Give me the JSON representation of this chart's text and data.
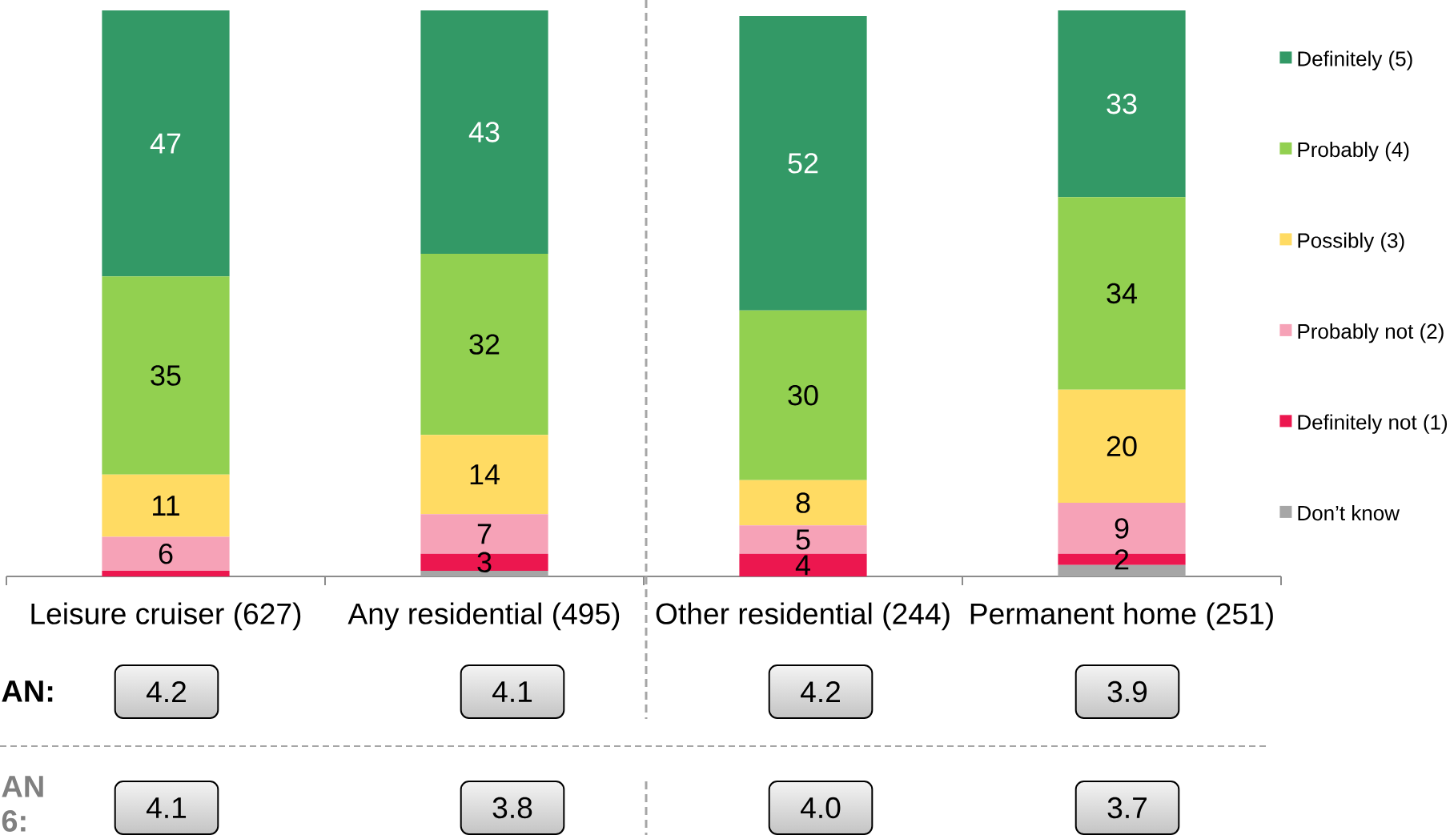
{
  "chart_data": {
    "type": "bar",
    "stacked": true,
    "categories": [
      "Leisure cruiser (627)",
      "Any residential (495)",
      "Other residential (244)",
      "Permanent home (251)"
    ],
    "series": [
      {
        "name": "Don’t know",
        "color": "#a6a6a6",
        "values": [
          0,
          1,
          0,
          2
        ]
      },
      {
        "name": "Definitely not (1)",
        "color": "#ec174f",
        "values": [
          1,
          3,
          4,
          2
        ],
        "value_labels": [
          null,
          "3",
          "4",
          "2"
        ]
      },
      {
        "name": "Probably not (2)",
        "color": "#f6a2b7",
        "values": [
          6,
          7,
          5,
          9
        ],
        "value_labels": [
          "6",
          "7",
          "5",
          "9"
        ]
      },
      {
        "name": "Possibly (3)",
        "color": "#ffdb63",
        "values": [
          11,
          14,
          8,
          20
        ],
        "value_labels": [
          "11",
          "14",
          "8",
          "20"
        ]
      },
      {
        "name": "Probably (4)",
        "color": "#92d050",
        "values": [
          35,
          32,
          30,
          34
        ],
        "value_labels": [
          "35",
          "32",
          "30",
          "34"
        ]
      },
      {
        "name": "Definitely (5)",
        "color": "#339966",
        "values": [
          47,
          43,
          52,
          33
        ],
        "value_labels": [
          "47",
          "43",
          "52",
          "33"
        ]
      }
    ],
    "ylim": [
      0,
      100
    ],
    "tick_labels": "x",
    "legend": "right",
    "annotations": [
      "AN:",
      "4.2",
      "4.1",
      "4.2",
      "3.9",
      "AN 6:",
      "4.1",
      "3.8",
      "4.0",
      "3.7"
    ]
  }
}
